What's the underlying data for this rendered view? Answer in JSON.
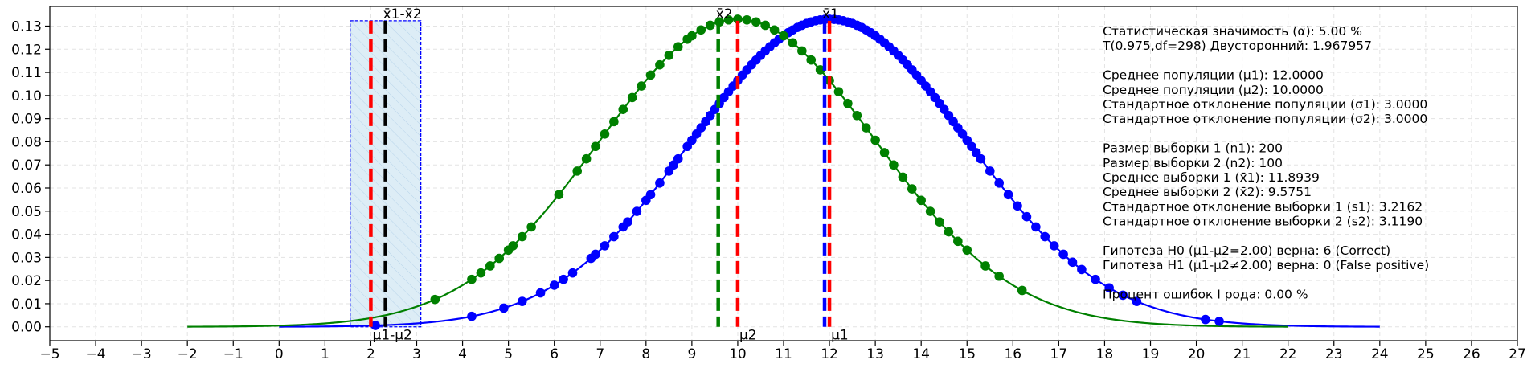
{
  "chart_data": {
    "type": "line",
    "title": "",
    "xlabel": "",
    "ylabel": "",
    "xlim": [
      -5,
      27
    ],
    "ylim": [
      -0.006,
      0.1385
    ],
    "x_ticks": [
      -5,
      -4,
      -3,
      -2,
      -1,
      0,
      1,
      2,
      3,
      4,
      5,
      6,
      7,
      8,
      9,
      10,
      11,
      12,
      13,
      14,
      15,
      16,
      17,
      18,
      19,
      20,
      21,
      22,
      23,
      24,
      25,
      26,
      27
    ],
    "x_tick_labels": [
      "−5",
      "−4",
      "−3",
      "−2",
      "−1",
      "0",
      "1",
      "2",
      "3",
      "4",
      "5",
      "6",
      "7",
      "8",
      "9",
      "10",
      "11",
      "12",
      "13",
      "14",
      "15",
      "16",
      "17",
      "18",
      "19",
      "20",
      "21",
      "22",
      "23",
      "24",
      "25",
      "26",
      "27"
    ],
    "y_ticks": [
      0.0,
      0.01,
      0.02,
      0.03,
      0.04,
      0.05,
      0.06,
      0.07,
      0.08,
      0.09,
      0.1,
      0.11,
      0.12,
      0.13
    ],
    "y_tick_labels": [
      "0.00",
      "0.01",
      "0.02",
      "0.03",
      "0.04",
      "0.05",
      "0.06",
      "0.07",
      "0.08",
      "0.09",
      "0.10",
      "0.11",
      "0.12",
      "0.13"
    ],
    "grid": true,
    "series": [
      {
        "color": "#0000ff",
        "mean": 12.0,
        "sd": 3.0,
        "x_range": [
          0,
          24
        ],
        "sample_points": [
          2.1,
          4.2,
          4.9,
          5.3,
          5.7,
          6.0,
          6.2,
          6.4,
          6.8,
          6.9,
          7.1,
          7.3,
          7.5,
          7.6,
          7.8,
          8.0,
          8.1,
          8.3,
          8.5,
          8.6,
          8.7,
          8.9,
          9.0,
          9.1,
          9.2,
          9.3,
          9.4,
          9.5,
          9.6,
          9.7,
          9.8,
          9.9,
          10.0,
          10.1,
          10.2,
          10.3,
          10.4,
          10.5,
          10.6,
          10.7,
          10.8,
          10.9,
          11.0,
          11.1,
          11.2,
          11.3,
          11.4,
          11.5,
          11.6,
          11.7,
          11.8,
          11.9,
          12.0,
          12.1,
          12.2,
          12.3,
          12.4,
          12.5,
          12.6,
          12.7,
          12.8,
          12.9,
          13.0,
          13.1,
          13.2,
          13.3,
          13.4,
          13.5,
          13.6,
          13.7,
          13.8,
          13.9,
          14.0,
          14.1,
          14.2,
          14.3,
          14.4,
          14.5,
          14.6,
          14.7,
          14.8,
          14.9,
          15.0,
          15.1,
          15.2,
          15.3,
          15.5,
          15.7,
          15.9,
          16.1,
          16.3,
          16.5,
          16.7,
          16.9,
          17.1,
          17.3,
          17.5,
          17.8,
          18.1,
          18.4,
          18.7,
          20.2,
          20.5
        ]
      },
      {
        "color": "#008000",
        "mean": 10.0,
        "sd": 3.0,
        "x_range": [
          -2,
          22
        ],
        "sample_points": [
          3.4,
          4.2,
          4.4,
          4.6,
          4.8,
          5.0,
          5.1,
          5.3,
          5.5,
          6.1,
          6.5,
          6.7,
          6.9,
          7.1,
          7.3,
          7.5,
          7.7,
          7.9,
          8.1,
          8.3,
          8.5,
          8.7,
          8.9,
          9.0,
          9.2,
          9.4,
          9.6,
          9.8,
          10.0,
          10.2,
          10.4,
          10.6,
          10.8,
          11.0,
          11.2,
          11.4,
          11.6,
          11.8,
          12.0,
          12.2,
          12.4,
          12.6,
          12.8,
          13.0,
          13.2,
          13.4,
          13.6,
          13.8,
          14.0,
          14.2,
          14.4,
          14.6,
          14.8,
          15.0,
          15.4,
          15.7,
          16.2
        ]
      }
    ],
    "vlines": [
      {
        "x": 10.0,
        "color": "#ff0000",
        "label": "μ2",
        "label_pos": "bottom"
      },
      {
        "x": 9.5751,
        "color": "#008000",
        "label": "x̄2",
        "label_pos": "top"
      },
      {
        "x": 12.0,
        "color": "#ff0000",
        "label": "μ1",
        "label_pos": "bottom"
      },
      {
        "x": 11.8939,
        "color": "#0000ff",
        "label": "x̄1",
        "label_pos": "top"
      },
      {
        "x": 2.0,
        "color": "#ff0000",
        "label": "μ1-μ2",
        "label_pos": "bottom"
      },
      {
        "x": 2.3188,
        "color": "#000000",
        "label": "x̄1-x̄2",
        "label_pos": "top"
      }
    ],
    "confidence_interval": {
      "low": 1.55,
      "high": 3.09,
      "top": 0.1323
    }
  },
  "info_lines": [
    "Статистическая значимость (α): 5.00 %",
    "T(0.975,df=298) Двусторонний: 1.967957",
    "",
    "Среднее популяции (μ1): 12.0000",
    "Среднее популяции (μ2): 10.0000",
    "Стандартное отклонение популяции (σ1): 3.0000",
    "Стандартное отклонение популяции (σ2): 3.0000",
    "",
    "Размер выборки 1 (n1): 200",
    "Размер выборки 2 (n2): 100",
    "Среднее выборки 1 (x̄1): 11.8939",
    "Среднее выборки 2 (x̄2): 9.5751",
    "Стандартное отклонение выборки 1 (s1): 3.2162",
    "Стандартное отклонение выборки 2 (s2): 3.1190",
    "",
    "Гипотеза H0 (μ1-μ2=2.00) верна: 6 (Correct)",
    "Гипотеза H1 (μ1-μ2≠2.00) верна: 0 (False positive)",
    "",
    "Процент ошибок I рода: 0.00 %"
  ]
}
